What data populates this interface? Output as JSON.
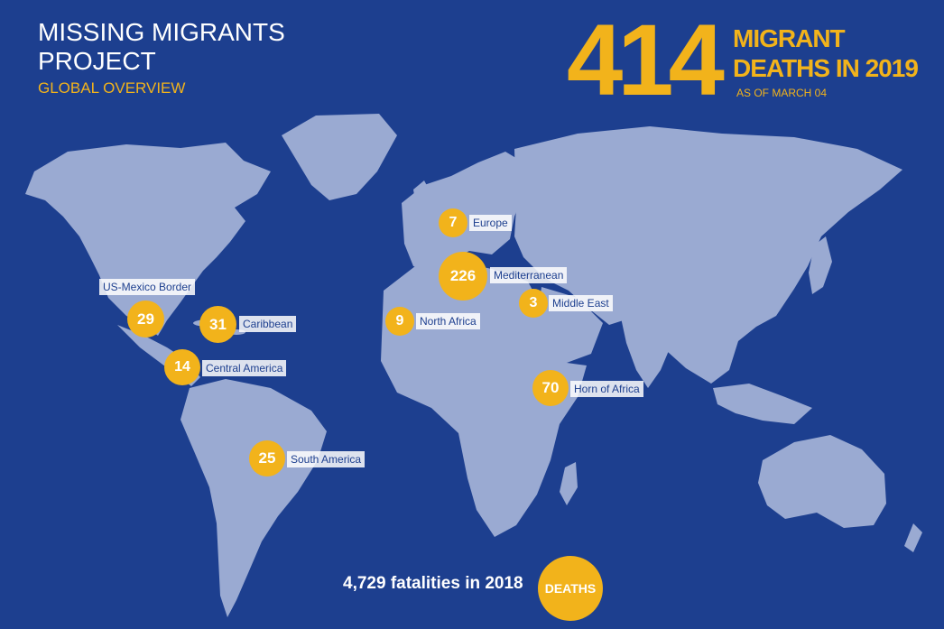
{
  "header": {
    "title": "MISSING MIGRANTS PROJECT",
    "subtitle": "GLOBAL OVERVIEW"
  },
  "summary": {
    "total": "414",
    "headline": "MIGRANT DEATHS IN 2019",
    "as_of": "AS OF MARCH 04"
  },
  "regions": [
    {
      "name": "US-Mexico Border",
      "count": "29"
    },
    {
      "name": "Caribbean",
      "count": "31"
    },
    {
      "name": "Central America",
      "count": "14"
    },
    {
      "name": "South America",
      "count": "25"
    },
    {
      "name": "Europe",
      "count": "7"
    },
    {
      "name": "Mediterranean",
      "count": "226"
    },
    {
      "name": "North Africa",
      "count": "9"
    },
    {
      "name": "Middle East",
      "count": "3"
    },
    {
      "name": "Horn of Africa",
      "count": "70"
    }
  ],
  "footer": {
    "text": "4,729 fatalities in 2018",
    "badge": "DEATHS"
  },
  "colors": {
    "background": "#1d3f8f",
    "land": "#9aaad2",
    "accent": "#f2b31b",
    "text": "#ffffff"
  }
}
